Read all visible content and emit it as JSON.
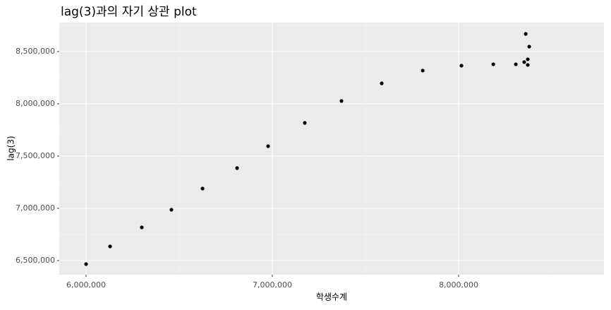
{
  "chart_data": {
    "type": "scatter",
    "title": "lag(3)과의 자기 상관 plot",
    "x_label": "학생수계",
    "y_label": "lag(3)",
    "x": [
      6000000,
      6128800,
      6299000,
      6458000,
      6625000,
      6810600,
      6977000,
      7174000,
      7371000,
      7587000,
      7807000,
      8015000,
      8186000,
      8307000,
      8352000,
      8360000,
      8371000,
      8371000,
      8379000
    ],
    "y": [
      6466000,
      6635000,
      6817600,
      6986500,
      7189000,
      7385000,
      7594600,
      7817600,
      8027000,
      8196000,
      8318000,
      8365000,
      8378000,
      8378000,
      8399000,
      8669000,
      8426000,
      8372000,
      8547000
    ],
    "color": "#000000",
    "xlim": [
      5856000,
      8780000
    ],
    "ylim": [
      6364900,
      8777000
    ],
    "xticks": [
      {
        "value": 6000000,
        "label": "6,000,000"
      },
      {
        "value": 7000000,
        "label": "7,000,000"
      },
      {
        "value": 8000000,
        "label": "8,000,000"
      }
    ],
    "yticks": [
      {
        "value": 6500000,
        "label": "6,500,000"
      },
      {
        "value": 7000000,
        "label": "7,000,000"
      },
      {
        "value": 7500000,
        "label": "7,500,000"
      },
      {
        "value": 8000000,
        "label": "8,000,000"
      },
      {
        "value": 8500000,
        "label": "8,500,000"
      }
    ],
    "grid": true
  }
}
